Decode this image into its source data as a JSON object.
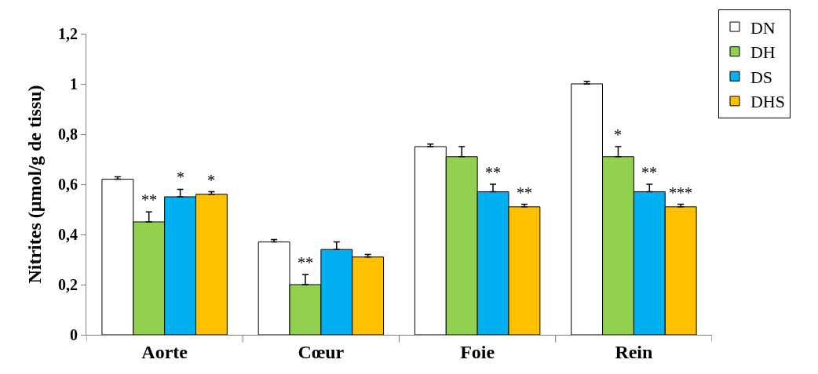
{
  "chart_data": {
    "type": "bar",
    "ylabel": "Nitrites (µmol/g de tissu)",
    "categories": [
      "Aorte",
      "Cœur",
      "Foie",
      "Rein"
    ],
    "series": [
      {
        "name": "DN",
        "color": "#ffffff",
        "values": [
          0.62,
          0.37,
          0.75,
          1.0
        ],
        "errors": [
          [
            0.62,
            0.63
          ],
          [
            0.37,
            0.38
          ],
          [
            0.75,
            0.76
          ],
          [
            1.0,
            1.01
          ]
        ]
      },
      {
        "name": "DH",
        "color": "#92d050",
        "values": [
          0.45,
          0.2,
          0.71,
          0.71
        ],
        "errors": [
          [
            0.45,
            0.49
          ],
          [
            0.2,
            0.24
          ],
          [
            0.71,
            0.75
          ],
          [
            0.71,
            0.75
          ]
        ]
      },
      {
        "name": "DS",
        "color": "#00b0f0",
        "values": [
          0.55,
          0.34,
          0.57,
          0.57
        ],
        "errors": [
          [
            0.55,
            0.58
          ],
          [
            0.34,
            0.37
          ],
          [
            0.57,
            0.6
          ],
          [
            0.57,
            0.6
          ]
        ]
      },
      {
        "name": "DHS",
        "color": "#ffc000",
        "values": [
          0.56,
          0.31,
          0.51,
          0.51
        ],
        "errors": [
          [
            0.56,
            0.57
          ],
          [
            0.31,
            0.32
          ],
          [
            0.51,
            0.52
          ],
          [
            0.51,
            0.52
          ]
        ]
      }
    ],
    "ylim": [
      0,
      1.2
    ],
    "yticks": [
      {
        "value": 0,
        "label": "0"
      },
      {
        "value": 0.2,
        "label": "0,2"
      },
      {
        "value": 0.4,
        "label": "0,4"
      },
      {
        "value": 0.6,
        "label": "0,6"
      },
      {
        "value": 0.8,
        "label": "0,8"
      },
      {
        "value": 1,
        "label": "1"
      },
      {
        "value": 1.2,
        "label": "1,2"
      }
    ],
    "grid": false,
    "legend": "top right",
    "annotations": [
      {
        "text": "**",
        "x": "Aorte",
        "y": 0.45
      },
      {
        "text": "*",
        "x": "Aorte",
        "y": 0.55
      },
      {
        "text": "*",
        "x": "Aorte",
        "y": 0.56
      },
      {
        "text": "**",
        "x": "Cœur",
        "y": 0.2
      },
      {
        "text": "**",
        "x": "Foie",
        "y": 0.57
      },
      {
        "text": "**",
        "x": "Foie",
        "y": 0.51
      },
      {
        "text": "*",
        "x": "Rein",
        "y": 0.71
      },
      {
        "text": "**",
        "x": "Rein",
        "y": 0.57
      },
      {
        "text": "***",
        "x": "Rein",
        "y": 0.51
      }
    ]
  }
}
